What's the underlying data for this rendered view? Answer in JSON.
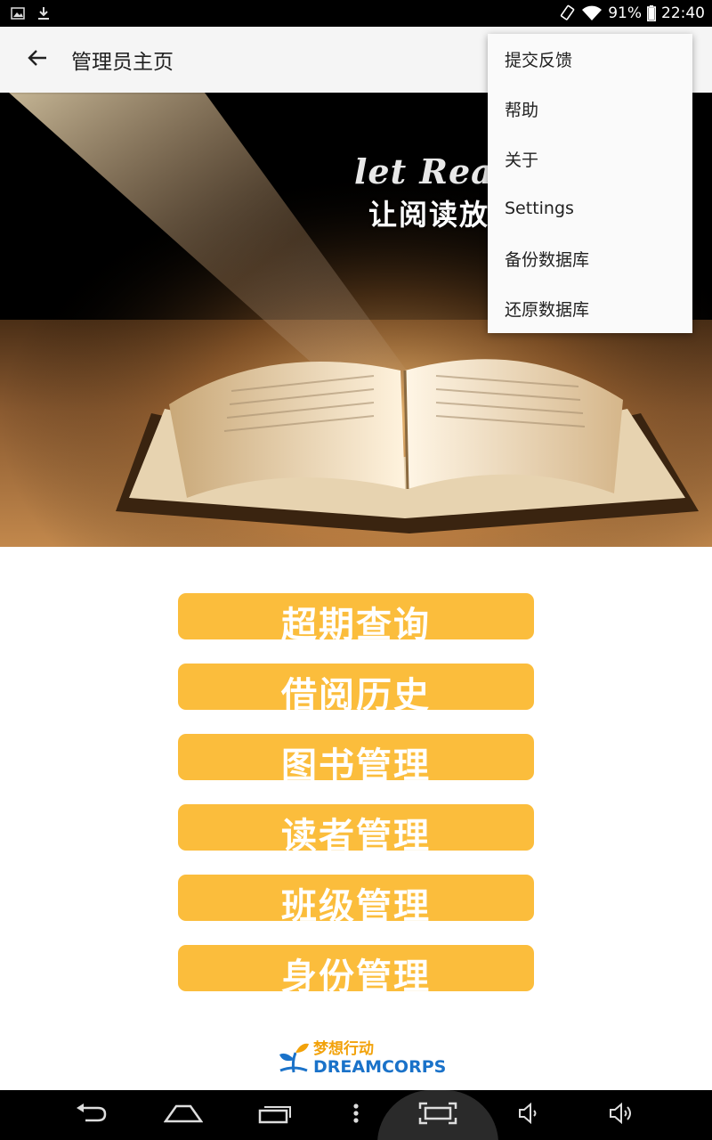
{
  "status_bar": {
    "battery": "91%",
    "time": "22:40",
    "left_icons": [
      "image-icon",
      "download-icon"
    ],
    "right_icons": [
      "rotate-icon",
      "wifi-icon",
      "battery-icon"
    ]
  },
  "app_bar": {
    "title": "管理员主页",
    "back_icon": "arrow-back-icon"
  },
  "banner": {
    "text_en": "let Readi",
    "text_cn": "让阅读放"
  },
  "menu": {
    "items": [
      {
        "label": "提交反馈"
      },
      {
        "label": "帮助"
      },
      {
        "label": "关于"
      },
      {
        "label": "Settings"
      },
      {
        "label": "备份数据库"
      },
      {
        "label": "还原数据库"
      }
    ]
  },
  "buttons": [
    {
      "label": "超期查询"
    },
    {
      "label": "借阅历史"
    },
    {
      "label": "图书管理"
    },
    {
      "label": "读者管理"
    },
    {
      "label": "班级管理"
    },
    {
      "label": "身份管理"
    }
  ],
  "logo": {
    "cn": "梦想行动",
    "en": "DREAMCORPS"
  },
  "nav_bar": {
    "icons": [
      "back-nav-icon",
      "home-nav-icon",
      "recents-nav-icon",
      "menu-dots-icon",
      "screenshot-icon",
      "volume-down-icon",
      "volume-up-icon"
    ]
  },
  "colors": {
    "accent": "#fbbd3c",
    "logo_orange": "#f2a20a",
    "logo_blue": "#1a72c9"
  }
}
